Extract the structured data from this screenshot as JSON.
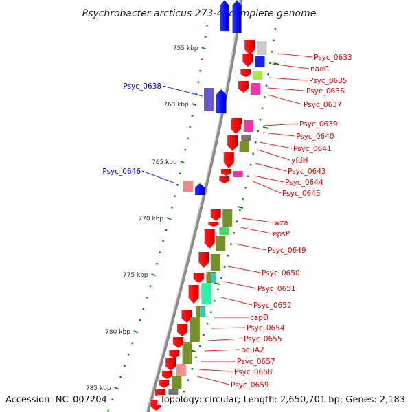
{
  "title": "Psychrobacter arcticus 273-4, complete genome",
  "footer": {
    "accession": "Accession: NC_007204",
    "topology": "Topology: circular; Length: 2,650,701 bp; Genes: 2,183"
  },
  "colors": {
    "forward_label": "#e00000",
    "reverse_label": "#0000e0",
    "backbone": "#888888",
    "tick": "#007700"
  },
  "ticks": [
    {
      "label": "755 kbp"
    },
    {
      "label": "760 kbp"
    },
    {
      "label": "765 kbp"
    },
    {
      "label": "770 kbp"
    },
    {
      "label": "775 kbp"
    },
    {
      "label": "780 kbp"
    },
    {
      "label": "785 kbp"
    }
  ],
  "labels_right": [
    {
      "text": "Psyc_0633"
    },
    {
      "text": "nadC"
    },
    {
      "text": "Psyc_0635"
    },
    {
      "text": "Psyc_0636"
    },
    {
      "text": "Psyc_0637"
    },
    {
      "text": "Psyc_0639"
    },
    {
      "text": "Psyc_0640"
    },
    {
      "text": "Psyc_0641"
    },
    {
      "text": "yfdH"
    },
    {
      "text": "Psyc_0643"
    },
    {
      "text": "Psyc_0644"
    },
    {
      "text": "Psyc_0645"
    },
    {
      "text": "wza"
    },
    {
      "text": "epsP"
    },
    {
      "text": "Psyc_0649"
    },
    {
      "text": "Psyc_0650"
    },
    {
      "text": "Psyc_0651"
    },
    {
      "text": "Psyc_0652"
    },
    {
      "text": "capD"
    },
    {
      "text": "Psyc_0654"
    },
    {
      "text": "Psyc_0655"
    },
    {
      "text": "neuA2"
    },
    {
      "text": "Psyc_0657"
    },
    {
      "text": "Psyc_0658"
    },
    {
      "text": "Psyc_0659"
    }
  ],
  "labels_left": [
    {
      "text": "Psyc_0638"
    },
    {
      "text": "Psyc_0646"
    }
  ],
  "cog_colors": {
    "gray": "#c8c8c8",
    "blue": "#0a14f0",
    "lime": "#a4e83c",
    "magenta": "#f02aa6",
    "darkgray": "#707070",
    "olive": "#6e8c1e",
    "green": "#2ede52",
    "cyan": "#22ccdd",
    "teal": "#22eea0",
    "pink": "#f08888",
    "violet": "#6a5ad0"
  }
}
